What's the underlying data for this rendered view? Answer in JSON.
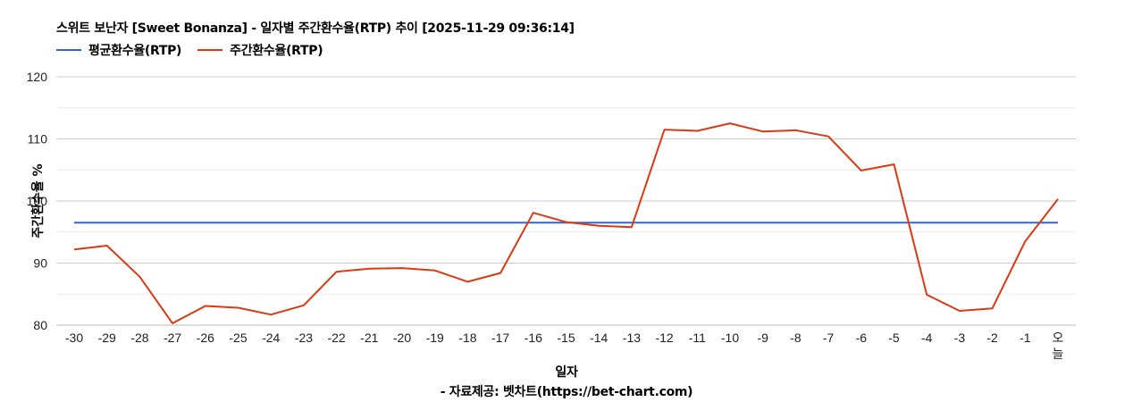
{
  "title": "스위트 보난자 [Sweet Bonanza] - 일자별 주간환수율(RTP) 추이 [2025-11-29 09:36:14]",
  "legend": [
    {
      "label": "평균환수율(RTP)",
      "color": "#3366cc"
    },
    {
      "label": "주간환수율(RTP)",
      "color": "#dc3912"
    }
  ],
  "xlabel": "일자",
  "credit": "- 자료제공: 벳차트(https://bet-chart.com)",
  "chart_data": {
    "type": "line",
    "title": "스위트 보난자 [Sweet Bonanza] - 일자별 주간환수율(RTP) 추이 [2025-11-29 09:36:14]",
    "xlabel": "일자",
    "ylabel": "주간환수율 %",
    "ylim": [
      80,
      120
    ],
    "yticks": [
      80,
      90,
      100,
      110,
      120
    ],
    "grid": true,
    "legend_position": "top",
    "categories": [
      "-30",
      "-29",
      "-28",
      "-27",
      "-26",
      "-25",
      "-24",
      "-23",
      "-22",
      "-21",
      "-20",
      "-19",
      "-18",
      "-17",
      "-16",
      "-15",
      "-14",
      "-13",
      "-12",
      "-11",
      "-10",
      "-9",
      "-8",
      "-7",
      "-6",
      "-5",
      "-4",
      "-3",
      "-2",
      "-1",
      "오늘"
    ],
    "series": [
      {
        "name": "평균환수율(RTP)",
        "color": "#3366cc",
        "values": [
          96.5,
          96.5,
          96.5,
          96.5,
          96.5,
          96.5,
          96.5,
          96.5,
          96.5,
          96.5,
          96.5,
          96.5,
          96.5,
          96.5,
          96.5,
          96.5,
          96.5,
          96.5,
          96.5,
          96.5,
          96.5,
          96.5,
          96.5,
          96.5,
          96.5,
          96.5,
          96.5,
          96.5,
          96.5,
          96.5,
          96.5
        ]
      },
      {
        "name": "주간환수율(RTP)",
        "color": "#dc3912",
        "values": [
          92.2,
          92.8,
          87.8,
          80.3,
          83.1,
          82.8,
          81.7,
          83.2,
          88.6,
          89.1,
          89.2,
          88.8,
          87.0,
          88.4,
          98.1,
          96.6,
          96.0,
          95.8,
          111.5,
          111.3,
          112.5,
          111.2,
          111.4,
          110.4,
          104.9,
          105.9,
          84.9,
          82.3,
          82.7,
          93.5,
          100.3
        ]
      }
    ]
  }
}
